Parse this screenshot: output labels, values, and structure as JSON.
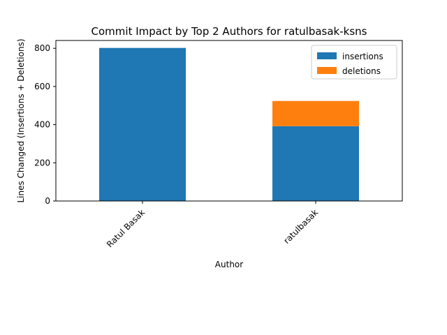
{
  "chart_data": {
    "type": "bar",
    "stacked": true,
    "title": "Commit Impact by Top 2 Authors for ratulbasak-ksns",
    "xlabel": "Author",
    "ylabel": "Lines Changed (Insertions + Deletions)",
    "categories": [
      "Ratul Basak",
      "ratulbasak"
    ],
    "series": [
      {
        "name": "insertions",
        "values": [
          802,
          392
        ],
        "color": "#1f77b4"
      },
      {
        "name": "deletions",
        "values": [
          0,
          132
        ],
        "color": "#ff7f0e"
      }
    ],
    "ylim": [
      0,
      841
    ],
    "yticks": [
      0,
      200,
      400,
      600,
      800
    ],
    "grid": false,
    "legend_position": "top-right"
  }
}
